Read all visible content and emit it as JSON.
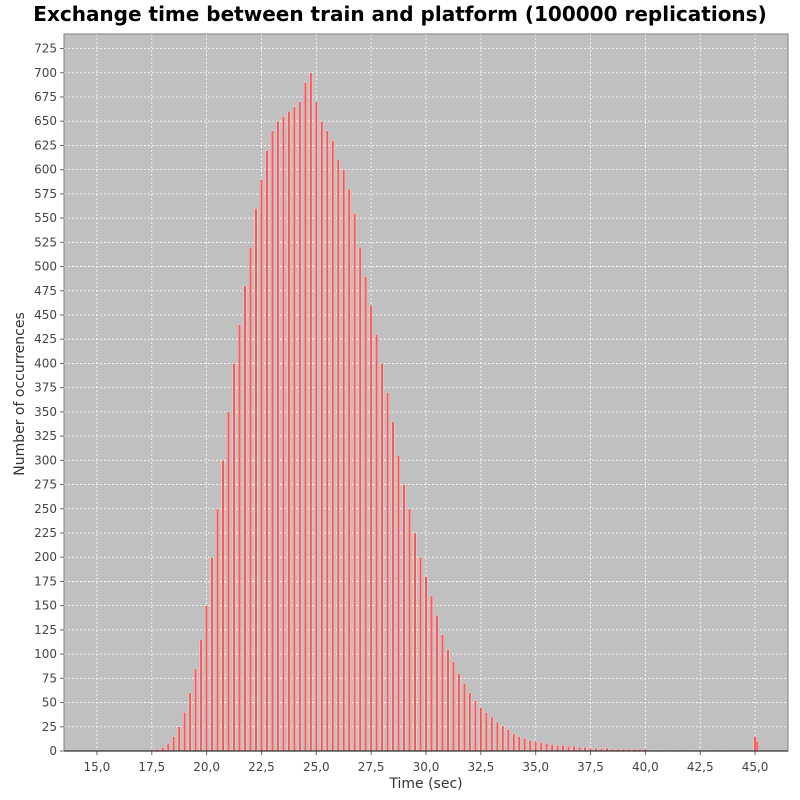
{
  "chart_data": {
    "type": "bar",
    "title": "Exchange time between train and platform (100000 replications)",
    "xlabel": "Time (sec)",
    "ylabel": "Number of occurrences",
    "xlim": [
      13.5,
      46.5
    ],
    "ylim": [
      0,
      740
    ],
    "x_ticks": [
      "15,0",
      "17,5",
      "20,0",
      "22,5",
      "25,0",
      "27,5",
      "30,0",
      "32,5",
      "35,0",
      "37,5",
      "40,0",
      "42,5",
      "45,0"
    ],
    "y_ticks": [
      "0",
      "25",
      "50",
      "75",
      "100",
      "125",
      "150",
      "175",
      "200",
      "225",
      "250",
      "275",
      "300",
      "325",
      "350",
      "375",
      "400",
      "425",
      "450",
      "475",
      "500",
      "525",
      "550",
      "575",
      "600",
      "625",
      "650",
      "675",
      "700",
      "725"
    ],
    "grid": true,
    "background": "#c0c0c0",
    "bar_color": "#ff5555",
    "bin_width": 0.05,
    "series": [
      {
        "x": [
          17.5,
          17.75,
          18.0,
          18.25,
          18.5,
          18.75,
          19.0,
          19.25,
          19.5,
          19.75,
          20.0,
          20.25,
          20.5,
          20.75,
          21.0,
          21.25,
          21.5,
          21.75,
          22.0,
          22.25,
          22.5,
          22.75,
          23.0,
          23.25,
          23.5,
          23.75,
          24.0,
          24.25,
          24.5,
          24.75,
          25.0,
          25.25,
          25.5,
          25.75,
          26.0,
          26.25,
          26.5,
          26.75,
          27.0,
          27.25,
          27.5,
          27.75,
          28.0,
          28.25,
          28.5,
          28.75,
          29.0,
          29.25,
          29.5,
          29.75,
          30.0,
          30.25,
          30.5,
          30.75,
          31.0,
          31.25,
          31.5,
          31.75,
          32.0,
          32.25,
          32.5,
          32.75,
          33.0,
          33.25,
          33.5,
          33.75,
          34.0,
          34.25,
          34.5,
          34.75,
          35.0,
          35.25,
          35.5,
          35.75,
          36.0,
          36.25,
          36.5,
          36.75,
          37.0,
          37.25,
          37.5,
          37.75,
          38.0,
          38.25,
          38.5,
          38.75,
          39.0,
          39.25,
          39.5,
          39.75,
          40.0,
          40.25,
          40.5,
          40.75,
          41.0,
          41.25,
          41.5,
          41.75,
          42.0,
          42.25,
          42.5,
          42.75,
          43.0,
          43.25,
          43.5,
          43.75,
          44.0,
          44.25,
          44.5,
          44.75,
          45.0,
          45.1
        ],
        "values": [
          1,
          2,
          4,
          8,
          15,
          25,
          40,
          60,
          85,
          115,
          150,
          200,
          250,
          300,
          350,
          400,
          440,
          480,
          520,
          560,
          590,
          620,
          640,
          650,
          655,
          660,
          665,
          670,
          690,
          700,
          670,
          650,
          640,
          630,
          610,
          600,
          580,
          555,
          520,
          490,
          460,
          430,
          400,
          370,
          340,
          305,
          275,
          250,
          225,
          200,
          180,
          160,
          140,
          120,
          105,
          92,
          80,
          70,
          60,
          52,
          45,
          40,
          35,
          30,
          26,
          22,
          18,
          15,
          13,
          11,
          10,
          9,
          8,
          7,
          6,
          6,
          5,
          5,
          4,
          4,
          3,
          3,
          3,
          3,
          2,
          2,
          2,
          2,
          2,
          2,
          2,
          1,
          1,
          1,
          1,
          1,
          1,
          1,
          1,
          1,
          1,
          1,
          1,
          1,
          1,
          1,
          1,
          1,
          1,
          1,
          15,
          10
        ]
      }
    ]
  }
}
